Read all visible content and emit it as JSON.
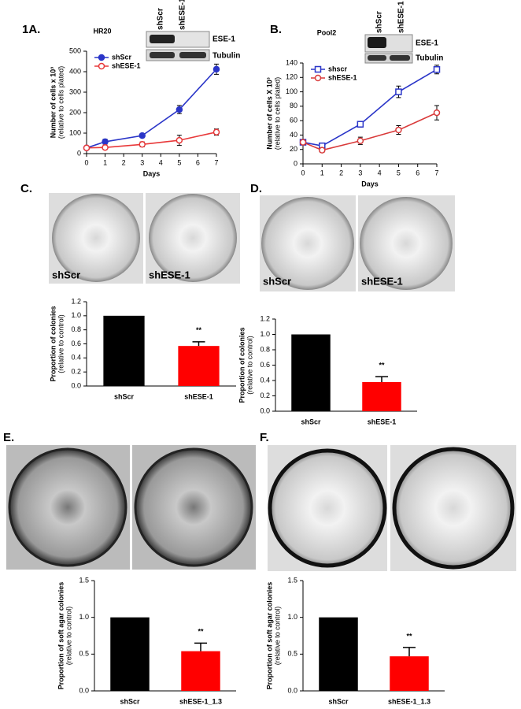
{
  "panel_labels": [
    "1A.",
    "B.",
    "C.",
    "D.",
    "E.",
    "F."
  ],
  "blots": [
    {
      "lanes": [
        "shScr",
        "shESE-1"
      ],
      "rows": [
        "ESE-1",
        "Tubulin"
      ]
    },
    {
      "lanes": [
        "shScr",
        "shESE-1"
      ],
      "rows": [
        "ESE-1",
        "Tubulin"
      ]
    }
  ],
  "photo_labels": [
    [
      "shScr",
      "shESE-1"
    ],
    [
      "shScr",
      "shESE-1"
    ]
  ],
  "chart_data": [
    {
      "type": "line",
      "title": "HR20",
      "x_label": "Days",
      "y_label": "Number of cells x 10³",
      "y_label_note": "(relative to cells plated)",
      "x": [
        0,
        1,
        3,
        5,
        7
      ],
      "xlim": [
        0,
        7
      ],
      "xticks": [
        0,
        1,
        2,
        3,
        4,
        5,
        6,
        7
      ],
      "ylim": [
        0,
        500
      ],
      "yticks": [
        0,
        100,
        200,
        300,
        400,
        500
      ],
      "series": [
        {
          "name": "shScr",
          "color": "#2a35c8",
          "marker": "circle",
          "values": [
            28,
            58,
            88,
            215,
            412
          ],
          "errors": [
            5,
            12,
            10,
            20,
            25
          ]
        },
        {
          "name": "shESE-1",
          "color": "#e8393a",
          "marker": "circle",
          "values": [
            28,
            30,
            45,
            65,
            105
          ],
          "errors": [
            5,
            10,
            12,
            25,
            15
          ]
        }
      ]
    },
    {
      "type": "line",
      "title": "Pool2",
      "x_label": "Days",
      "y_label": "Number of cells X 10³",
      "y_label_note": "(relative to cells plated)",
      "x": [
        0,
        1,
        3,
        5,
        7
      ],
      "xlim": [
        0,
        7
      ],
      "xticks": [
        0,
        1,
        2,
        3,
        4,
        5,
        6,
        7
      ],
      "ylim": [
        0,
        140
      ],
      "yticks": [
        0,
        20,
        40,
        60,
        80,
        100,
        120,
        140
      ],
      "series": [
        {
          "name": "shscr",
          "color": "#2a35c8",
          "marker": "square",
          "values": [
            30,
            25,
            55,
            100,
            131
          ],
          "errors": [
            3,
            3,
            4,
            8,
            6
          ]
        },
        {
          "name": "shESE-1",
          "color": "#d93a3a",
          "marker": "circle",
          "values": [
            30,
            19,
            32,
            47,
            71
          ],
          "errors": [
            3,
            3,
            5,
            6,
            10
          ]
        }
      ]
    },
    {
      "type": "bar",
      "y_label": "Proportion of colonies",
      "y_label_note": "(relative to control)",
      "annotation": "**",
      "categories": [
        "shScr",
        "shESE-1"
      ],
      "values": [
        1.0,
        0.57
      ],
      "errors": [
        0,
        0.06
      ],
      "colors": [
        "#000000",
        "#ff0000"
      ],
      "ylim": [
        0,
        1.2
      ],
      "yticks": [
        {
          "value": 0,
          "label": "0.0"
        },
        0.2,
        0.4,
        0.6,
        0.8,
        {
          "value": 1,
          "label": "1.0"
        },
        1.2
      ]
    },
    {
      "type": "bar",
      "y_label": "Proportion of colonies",
      "y_label_note": "(relative to control)",
      "annotation": "**",
      "categories": [
        "shScr",
        "shESE-1"
      ],
      "values": [
        1.0,
        0.38
      ],
      "errors": [
        0,
        0.07
      ],
      "colors": [
        "#000000",
        "#ff0000"
      ],
      "ylim": [
        0,
        1.2
      ],
      "yticks": [
        {
          "value": 0,
          "label": "0.0"
        },
        0.2,
        0.4,
        0.6,
        0.8,
        {
          "value": 1,
          "label": "1.0"
        },
        1.2
      ]
    },
    {
      "type": "bar",
      "y_label": "Proportion of soft agar colonies",
      "y_label_note": "(relative to control)",
      "annotation": "**",
      "categories": [
        "shScr",
        "shESE-1_1.3"
      ],
      "values": [
        1.0,
        0.54
      ],
      "errors": [
        0,
        0.11
      ],
      "colors": [
        "#000000",
        "#ff0000"
      ],
      "ylim": [
        0,
        1.5
      ],
      "yticks": [
        {
          "value": 0,
          "label": "0.0"
        },
        0.5,
        {
          "value": 1,
          "label": "1.0"
        },
        1.5
      ]
    },
    {
      "type": "bar",
      "y_label": "Proportion of soft agar colonies",
      "y_label_note": "(relative to control)",
      "annotation": "**",
      "categories": [
        "shScr",
        "shESE-1_1.3"
      ],
      "values": [
        1.0,
        0.47
      ],
      "errors": [
        0,
        0.12
      ],
      "colors": [
        "#000000",
        "#ff0000"
      ],
      "ylim": [
        0,
        1.5
      ],
      "yticks": [
        {
          "value": 0,
          "label": "0.0"
        },
        0.5,
        {
          "value": 1,
          "label": "1.0"
        },
        1.5
      ]
    }
  ]
}
